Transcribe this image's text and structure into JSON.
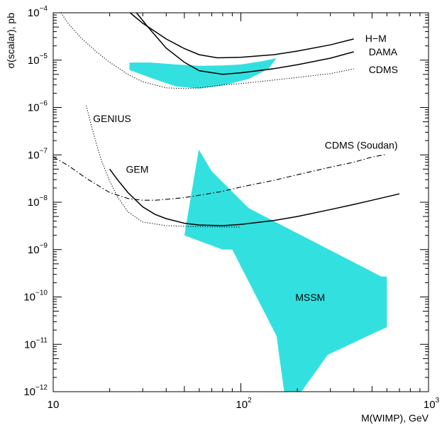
{
  "chart_data": {
    "type": "line",
    "xlabel": "M(WIMP), GeV",
    "ylabel": "σ(scalar), pb",
    "xscale": "log",
    "yscale": "log",
    "xlim": [
      10,
      1000
    ],
    "ylim": [
      1e-12,
      0.0001
    ],
    "x_ticks": [
      {
        "base": "10",
        "exp": "",
        "value": 10
      },
      {
        "base": "10",
        "exp": "2",
        "value": 100
      },
      {
        "base": "10",
        "exp": "3",
        "value": 1000
      }
    ],
    "y_ticks": [
      {
        "base": "10",
        "exp": "−4",
        "value": 0.0001
      },
      {
        "base": "10",
        "exp": "−5",
        "value": 1e-05
      },
      {
        "base": "10",
        "exp": "−6",
        "value": 1e-06
      },
      {
        "base": "10",
        "exp": "−7",
        "value": 1e-07
      },
      {
        "base": "10",
        "exp": "−8",
        "value": 1e-08
      },
      {
        "base": "10",
        "exp": "−9",
        "value": 1e-09
      },
      {
        "base": "10",
        "exp": "−10",
        "value": 1e-10
      },
      {
        "base": "10",
        "exp": "−11",
        "value": 1e-11
      },
      {
        "base": "10",
        "exp": "−12",
        "value": 1e-12
      }
    ],
    "colors": {
      "region": "#33e0e0",
      "line": "#000000"
    },
    "series": [
      {
        "label": "H−M",
        "style": "solid",
        "x": [
          25.7,
          30,
          40,
          50,
          60,
          75,
          100,
          150,
          200,
          300,
          400
        ],
        "y": [
          0.0001,
          6e-05,
          2.8e-05,
          1.75e-05,
          1.3e-05,
          1.12e-05,
          1.15e-05,
          1.3e-05,
          1.55e-05,
          2.1e-05,
          2.8e-05
        ]
      },
      {
        "label": "DAMA",
        "style": "solid",
        "x": [
          27.8,
          32,
          40,
          50,
          60,
          80,
          100,
          150,
          200,
          300,
          400
        ],
        "y": [
          0.0001,
          5e-05,
          1.8e-05,
          9e-06,
          6e-06,
          5e-06,
          5.4e-06,
          6.6e-06,
          8e-06,
          1.1e-05,
          1.5e-05
        ]
      },
      {
        "label": "CDMS",
        "style": "dotted",
        "x": [
          11,
          12,
          14,
          17,
          20,
          25,
          30,
          40,
          50,
          60,
          70,
          80,
          100,
          150,
          200,
          300,
          400
        ],
        "y": [
          0.0001,
          6e-05,
          3e-05,
          1.5e-05,
          9e-06,
          5e-06,
          3.5e-06,
          2.6e-06,
          2.5e-06,
          2.6e-06,
          2.8e-06,
          3e-06,
          3.2e-06,
          3.8e-06,
          4.3e-06,
          5.2e-06,
          6.5e-06
        ]
      },
      {
        "label": "CDMS (Soudan)",
        "style": "dashdot",
        "x": [
          10,
          12,
          15,
          20,
          25,
          30,
          35,
          40,
          50,
          60,
          80,
          100,
          150,
          200,
          300,
          400,
          500,
          600
        ],
        "y": [
          9e-08,
          6e-08,
          3.2e-08,
          1.6e-08,
          1.2e-08,
          1.1e-08,
          1.1e-08,
          1.15e-08,
          1.25e-08,
          1.4e-08,
          1.7e-08,
          2.1e-08,
          2.9e-08,
          3.8e-08,
          5.5e-08,
          7e-08,
          9e-08,
          1.03e-07
        ]
      },
      {
        "label": "GEM",
        "style": "solid",
        "x": [
          20,
          22,
          25,
          30,
          35,
          40,
          50,
          60,
          80,
          100,
          150,
          200,
          300,
          400,
          500,
          700
        ],
        "y": [
          5e-08,
          3e-08,
          1.6e-08,
          8e-09,
          5.5e-09,
          4.5e-09,
          3.6e-09,
          3.3e-09,
          3.2e-09,
          3.4e-09,
          4.1e-09,
          5e-09,
          7e-09,
          9e-09,
          1.1e-08,
          1.5e-08
        ]
      },
      {
        "label": "GENIUS",
        "style": "dotted",
        "x": [
          15,
          16,
          17,
          18,
          20,
          22,
          25,
          30,
          40,
          50,
          60,
          80,
          100
        ],
        "y": [
          1.1e-06,
          4e-07,
          1.7e-07,
          8e-08,
          2.8e-08,
          1.3e-08,
          6.3e-09,
          3.8e-09,
          3.2e-09,
          3.1e-09,
          3.05e-09,
          3e-09,
          3e-09
        ]
      }
    ],
    "regions": [
      {
        "label": "",
        "x": [
          25.5,
          33,
          45,
          60,
          80,
          100,
          130,
          155,
          140,
          110,
          80,
          60,
          45,
          35,
          25.5
        ],
        "y": [
          8.9e-06,
          8.9e-06,
          8.1e-06,
          7.6e-06,
          7.7e-06,
          8.1e-06,
          9.5e-06,
          1.1e-05,
          6.5e-06,
          4e-06,
          2.9e-06,
          2.5e-06,
          2.8e-06,
          3.9e-06,
          6.2e-06
        ]
      },
      {
        "label": "MSSM",
        "x": [
          59.7,
          70,
          110,
          560,
          600,
          600,
          540,
          290,
          270,
          210,
          170,
          155,
          90,
          80,
          50
        ],
        "y": [
          1.3e-07,
          4.5e-08,
          7.5e-09,
          2.7e-10,
          2.7e-10,
          2.3e-11,
          1.9e-11,
          6e-12,
          4e-12,
          1e-12,
          1e-12,
          1.5e-11,
          1e-09,
          1e-09,
          2e-09
        ]
      }
    ],
    "annotations": [
      {
        "text": "H−M",
        "x": 460,
        "y": 2.9e-05
      },
      {
        "text": "DAMA",
        "x": 480,
        "y": 1.5e-05
      },
      {
        "text": "CDMS",
        "x": 480,
        "y": 6.3e-06
      },
      {
        "text": "GENIUS",
        "x": 16.3,
        "y": 5.9e-07
      },
      {
        "text": "CDMS (Soudan)",
        "x": 280,
        "y": 1.6e-07
      },
      {
        "text": "GEM",
        "x": 24.4,
        "y": 5e-08
      },
      {
        "text": "MSSM",
        "x": 195,
        "y": 9.8e-11
      }
    ]
  }
}
